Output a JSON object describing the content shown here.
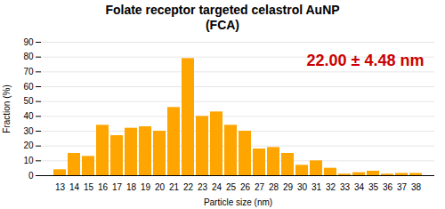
{
  "chart_data": {
    "type": "bar",
    "title": "Folate receptor targeted celastrol AuNP",
    "subtitle": "(FCA)",
    "x_label": "Particle size (nm)",
    "y_label": "Fraction (%)",
    "annotations": [
      {
        "text": "22.00 ± 4.48 nm",
        "color": "#cc0000"
      }
    ],
    "categories": [
      13,
      14,
      15,
      16,
      17,
      18,
      19,
      20,
      21,
      22,
      23,
      24,
      25,
      26,
      27,
      28,
      29,
      30,
      31,
      32,
      33,
      34,
      35,
      36,
      37,
      38
    ],
    "values": [
      4,
      15,
      13,
      34,
      27,
      32,
      33,
      30,
      46,
      79,
      40,
      43,
      34,
      30,
      18,
      19,
      15,
      7,
      10,
      5,
      1,
      2,
      3,
      1,
      1.5,
      1.5
    ],
    "color": "#FFA500",
    "ylim": [
      0,
      90
    ],
    "yticks": [
      0,
      10,
      20,
      30,
      40,
      50,
      60,
      70,
      80,
      90
    ],
    "grid": true
  }
}
